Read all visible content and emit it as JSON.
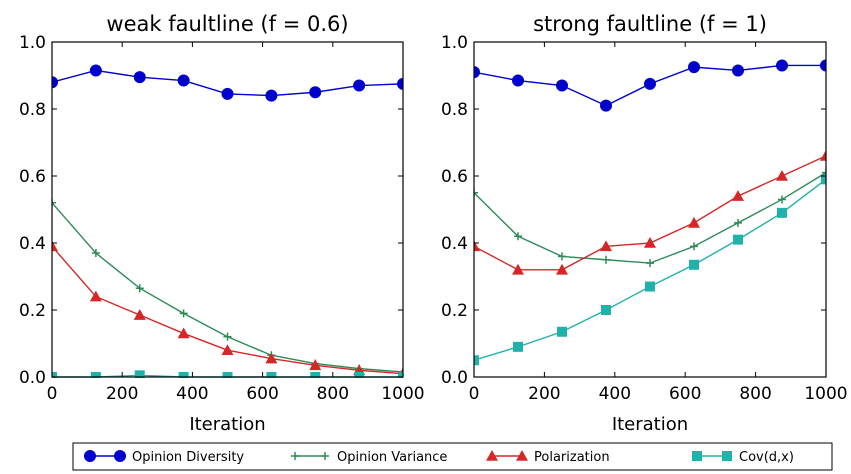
{
  "chart_data": [
    {
      "type": "line",
      "title": "weak faultline (f = 0.6)",
      "xlabel": "Iteration",
      "ylabel": "",
      "xlim": [
        0,
        1000
      ],
      "ylim": [
        0,
        1.0
      ],
      "xticks": [
        "0",
        "200",
        "400",
        "600",
        "800",
        "1000"
      ],
      "yticks": [
        "0.0",
        "0.2",
        "0.4",
        "0.6",
        "0.8",
        "1.0"
      ],
      "grid": false,
      "series": [
        {
          "name": "Opinion Diversity",
          "color": "#0000cc",
          "marker": "circle",
          "x": [
            0,
            125,
            250,
            375,
            500,
            625,
            750,
            875,
            1000
          ],
          "values": [
            0.88,
            0.915,
            0.895,
            0.885,
            0.845,
            0.84,
            0.85,
            0.87,
            0.875
          ]
        },
        {
          "name": "Opinion Variance",
          "color": "#2e8b57",
          "marker": "cross",
          "x": [
            0,
            125,
            250,
            375,
            500,
            625,
            750,
            875,
            1000
          ],
          "values": [
            0.52,
            0.37,
            0.265,
            0.19,
            0.12,
            0.065,
            0.04,
            0.025,
            0.015
          ]
        },
        {
          "name": "Polarization",
          "color": "#d62728",
          "marker": "triangle",
          "x": [
            0,
            125,
            250,
            375,
            500,
            625,
            750,
            875,
            1000
          ],
          "values": [
            0.39,
            0.24,
            0.185,
            0.13,
            0.08,
            0.055,
            0.035,
            0.02,
            0.01
          ]
        },
        {
          "name": "Cov(d,x)",
          "color": "#20b2aa",
          "marker": "square",
          "x": [
            0,
            125,
            250,
            375,
            500,
            625,
            750,
            875,
            1000
          ],
          "values": [
            0.0,
            0.0,
            0.005,
            0.0,
            0.0,
            0.0,
            0.0,
            0.0,
            0.0
          ]
        }
      ]
    },
    {
      "type": "line",
      "title": "strong faultline (f = 1)",
      "xlabel": "Iteration",
      "ylabel": "",
      "xlim": [
        0,
        1000
      ],
      "ylim": [
        0,
        1.0
      ],
      "xticks": [
        "0",
        "200",
        "400",
        "600",
        "800",
        "1000"
      ],
      "yticks": [
        "0.0",
        "0.2",
        "0.4",
        "0.6",
        "0.8",
        "1.0"
      ],
      "grid": false,
      "series": [
        {
          "name": "Opinion Diversity",
          "color": "#0000cc",
          "marker": "circle",
          "x": [
            0,
            125,
            250,
            375,
            500,
            625,
            750,
            875,
            1000
          ],
          "values": [
            0.91,
            0.885,
            0.87,
            0.81,
            0.875,
            0.925,
            0.915,
            0.93,
            0.93
          ]
        },
        {
          "name": "Opinion Variance",
          "color": "#2e8b57",
          "marker": "cross",
          "x": [
            0,
            125,
            250,
            375,
            500,
            625,
            750,
            875,
            1000
          ],
          "values": [
            0.55,
            0.42,
            0.36,
            0.35,
            0.34,
            0.39,
            0.46,
            0.53,
            0.61
          ]
        },
        {
          "name": "Polarization",
          "color": "#d62728",
          "marker": "triangle",
          "x": [
            0,
            125,
            250,
            375,
            500,
            625,
            750,
            875,
            1000
          ],
          "values": [
            0.39,
            0.32,
            0.32,
            0.39,
            0.4,
            0.46,
            0.54,
            0.6,
            0.66
          ]
        },
        {
          "name": "Cov(d,x)",
          "color": "#20b2aa",
          "marker": "square",
          "x": [
            0,
            125,
            250,
            375,
            500,
            625,
            750,
            875,
            1000
          ],
          "values": [
            0.05,
            0.09,
            0.135,
            0.2,
            0.27,
            0.335,
            0.41,
            0.49,
            0.59
          ]
        }
      ]
    }
  ],
  "legend": {
    "placement": "bottom",
    "items": [
      {
        "label": "Opinion Diversity",
        "color": "#0000cc",
        "marker": "circle"
      },
      {
        "label": "Opinion Variance",
        "color": "#2e8b57",
        "marker": "cross"
      },
      {
        "label": "Polarization",
        "color": "#d62728",
        "marker": "triangle"
      },
      {
        "label": "Cov(d,x)",
        "color": "#20b2aa",
        "marker": "square"
      }
    ]
  }
}
